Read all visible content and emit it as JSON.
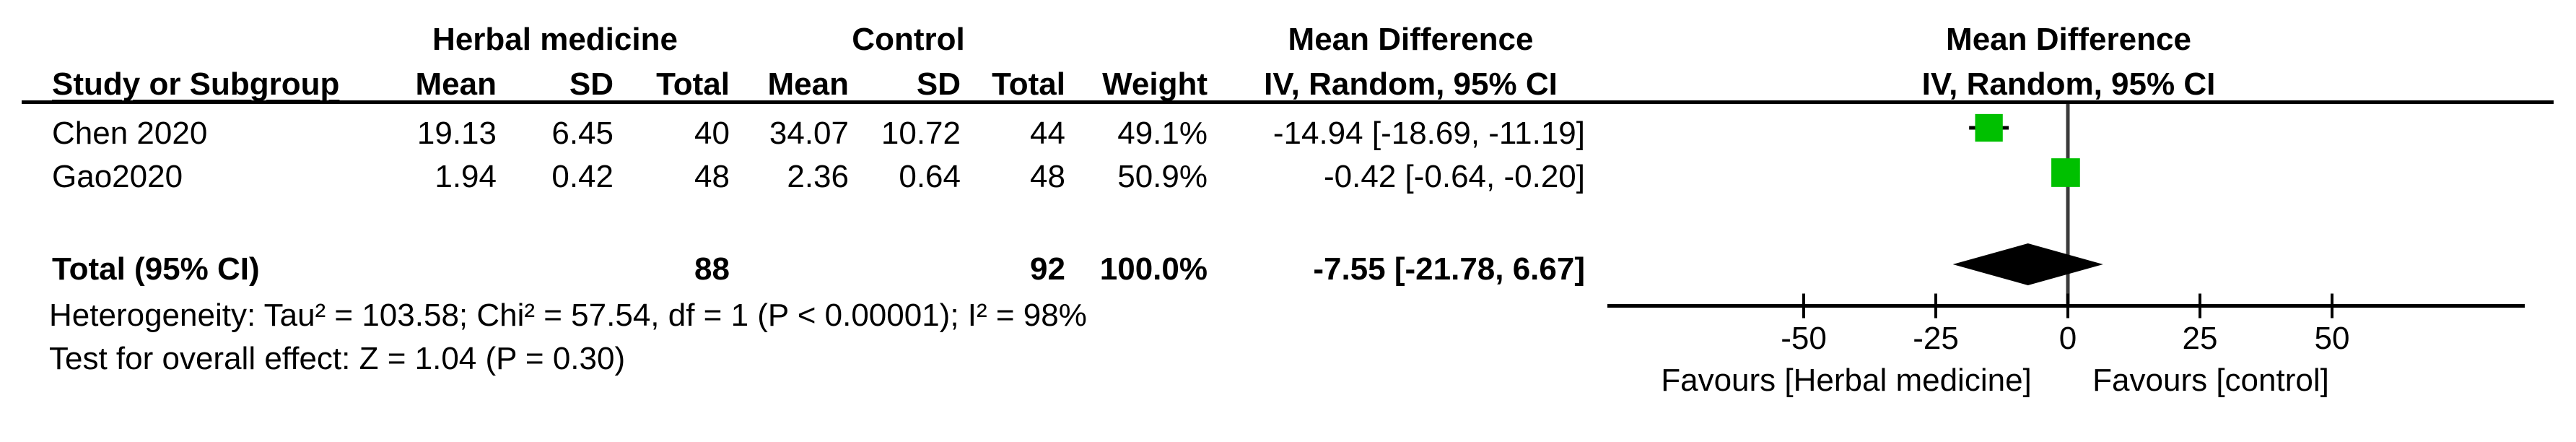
{
  "header": {
    "group1": "Herbal medicine",
    "group2": "Control",
    "stats_col": {
      "line1": "Mean Difference",
      "line2": "IV, Random, 95% CI"
    },
    "plot_col": {
      "line1": "Mean Difference",
      "line2": "IV, Random, 95% CI"
    },
    "columns": {
      "study": "Study or Subgroup",
      "mean1": "Mean",
      "sd1": "SD",
      "total1": "Total",
      "mean2": "Mean",
      "sd2": "SD",
      "total2": "Total",
      "weight": "Weight"
    }
  },
  "rows": [
    {
      "study": "Chen 2020",
      "mean1": "19.13",
      "sd1": "6.45",
      "total1": "40",
      "mean2": "34.07",
      "sd2": "10.72",
      "total2": "44",
      "weight": "49.1%",
      "ci": "-14.94 [-18.69, -11.19]"
    },
    {
      "study": "Gao2020",
      "mean1": "1.94",
      "sd1": "0.42",
      "total1": "48",
      "mean2": "2.36",
      "sd2": "0.64",
      "total2": "48",
      "weight": "50.9%",
      "ci": "-0.42 [-0.64, -0.20]"
    }
  ],
  "total_row": {
    "label": "Total (95% CI)",
    "total1": "88",
    "total2": "92",
    "weight": "100.0%",
    "ci": "-7.55 [-21.78, 6.67]"
  },
  "footnotes": {
    "heterogeneity": "Heterogeneity: Tau² = 103.58; Chi² = 57.54, df = 1 (P < 0.00001); I² = 98%",
    "overall_effect": "Test for overall effect: Z = 1.04 (P = 0.30)"
  },
  "plot": {
    "colors": {
      "marker": "#00c000",
      "diamond": "#000000",
      "axis": "#000000",
      "zero_line": "#3a3a3a"
    }
  },
  "chart_data": {
    "type": "scatter",
    "subtype": "forest-plot",
    "title": "Mean Difference — IV, Random, 95% CI",
    "effect_measure": "Mean Difference",
    "model": "IV, Random, 95% CI",
    "xticks": [
      -50,
      -25,
      0,
      25,
      50
    ],
    "xlim": [
      -87,
      86
    ],
    "studies": [
      {
        "name": "Chen 2020",
        "mean_diff": -14.94,
        "ci_low": -18.69,
        "ci_high": -11.19,
        "weight_pct": 49.1
      },
      {
        "name": "Gao2020",
        "mean_diff": -0.42,
        "ci_low": -0.64,
        "ci_high": -0.2,
        "weight_pct": 50.9
      }
    ],
    "overall": {
      "name": "Total (95% CI)",
      "mean_diff": -7.55,
      "ci_low": -21.78,
      "ci_high": 6.67,
      "weight_pct": 100.0
    },
    "x_axis_left_label": "Favours [Herbal medicine]",
    "x_axis_right_label": "Favours [control]"
  }
}
